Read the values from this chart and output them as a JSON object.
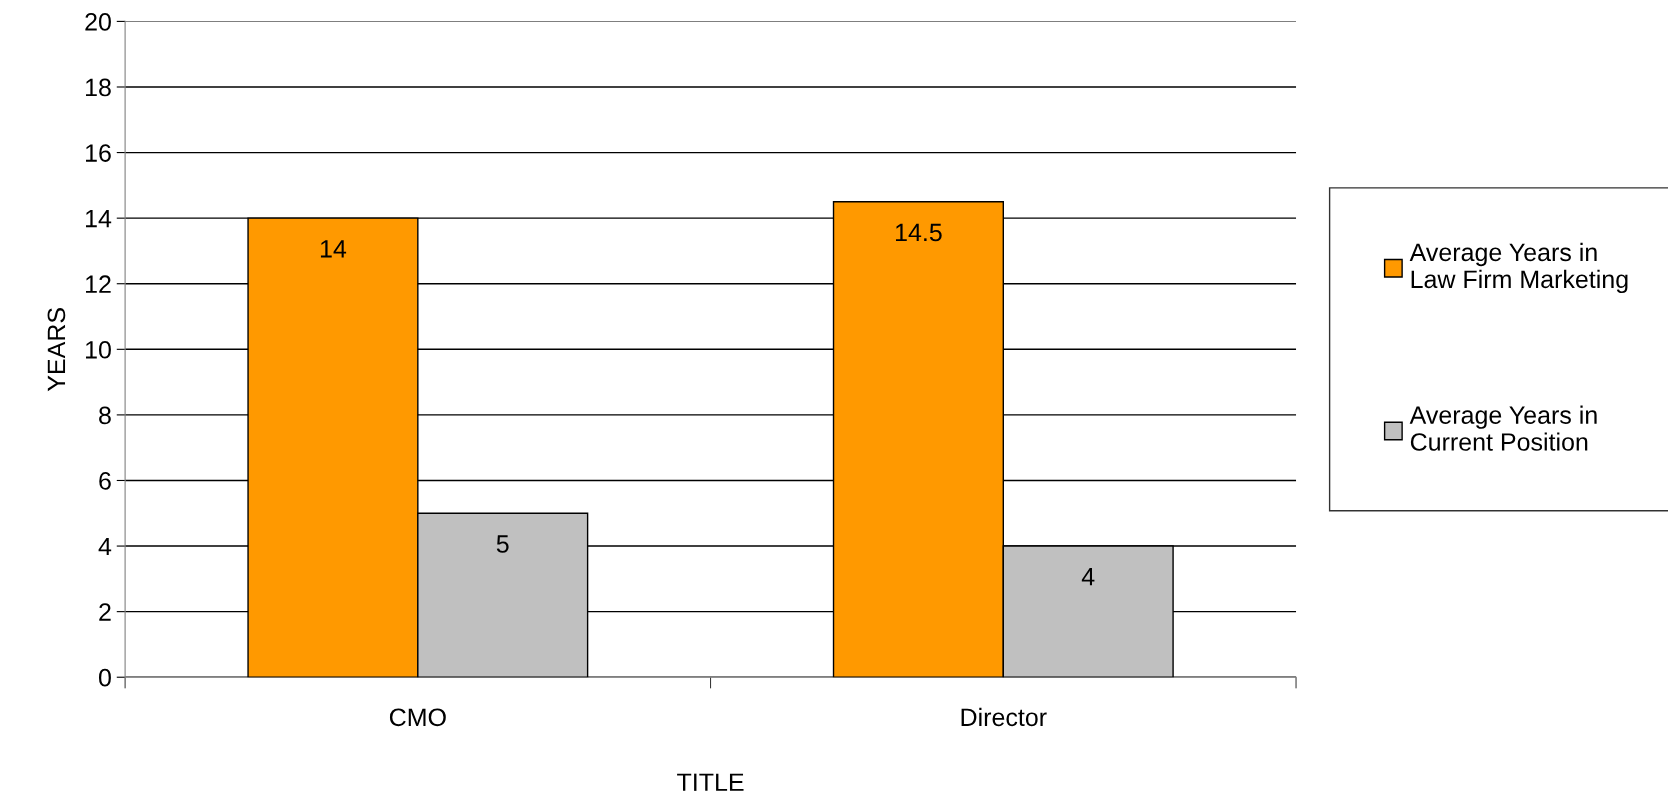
{
  "chart_data": {
    "type": "bar",
    "xlabel": "TITLE",
    "ylabel": "YEARS",
    "categories": [
      "CMO",
      "Director"
    ],
    "series": [
      {
        "name": "Average Years in\nLaw Firm Marketing",
        "color": "#ff9900",
        "values": [
          14,
          14.5
        ]
      },
      {
        "name": "Average Years in\nCurrent Position",
        "color": "#c0c0c0",
        "values": [
          5,
          4
        ]
      }
    ],
    "ylim": [
      0,
      20
    ],
    "yticks": [
      0,
      2,
      4,
      6,
      8,
      10,
      12,
      14,
      16,
      18,
      20
    ],
    "grid": "y",
    "legend": "right",
    "data_labels": true
  }
}
